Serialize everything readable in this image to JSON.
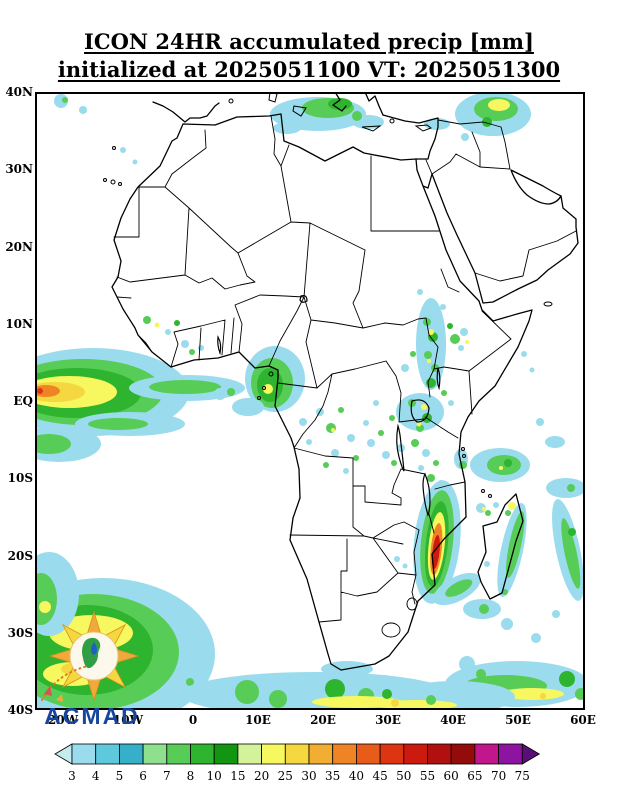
{
  "title": {
    "line1": "ICON 24HR accumulated precip [mm]",
    "line2": "initialized at 2025051100 VT: 2025051300"
  },
  "map": {
    "lat_ticks": [
      "40N",
      "30N",
      "20N",
      "10N",
      "EQ",
      "10S",
      "20S",
      "30S",
      "40S"
    ],
    "lon_ticks": [
      "20W",
      "10W",
      "0",
      "10E",
      "20E",
      "30E",
      "40E",
      "50E",
      "60E"
    ]
  },
  "colorbar": {
    "labels": [
      "3",
      "4",
      "5",
      "6",
      "7",
      "8",
      "10",
      "15",
      "20",
      "25",
      "30",
      "35",
      "40",
      "45",
      "50",
      "55",
      "60",
      "65",
      "70",
      "75"
    ],
    "colors": [
      "#c6ecf0",
      "#9adced",
      "#5ec8dc",
      "#35b0c8",
      "#8ee08e",
      "#57cc57",
      "#2eb42e",
      "#129612",
      "#d4f29a",
      "#f7f75f",
      "#f5d740",
      "#f2ae33",
      "#ee8426",
      "#e85c1a",
      "#dd3512",
      "#cc1a0e",
      "#b01010",
      "#930b0b",
      "#c2178c",
      "#8c14a0",
      "#5a0e78"
    ]
  },
  "logo": {
    "text": "ACMAD"
  }
}
